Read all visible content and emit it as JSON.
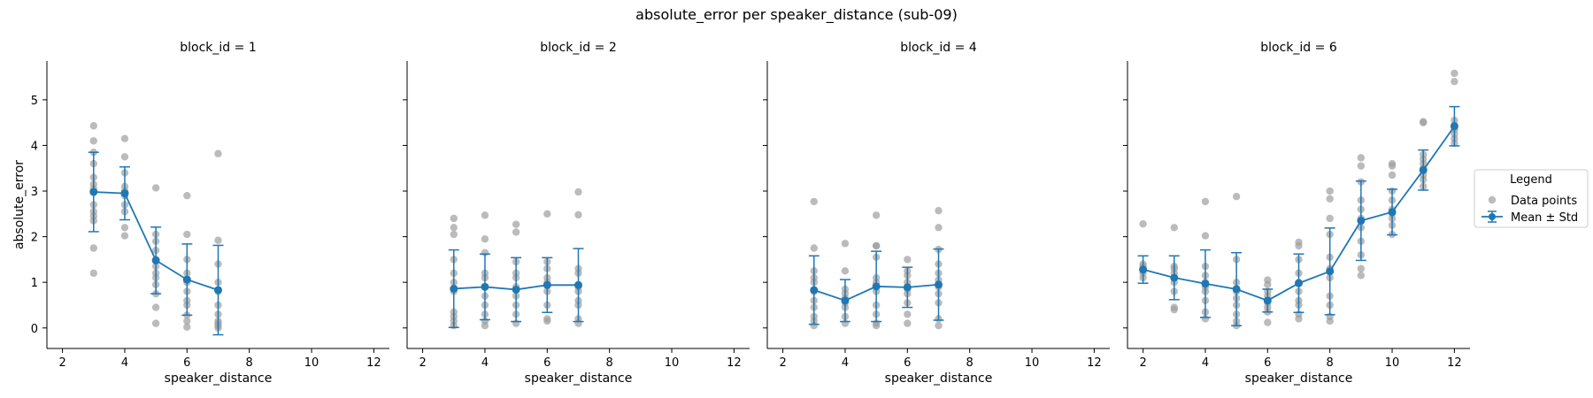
{
  "chart_data": {
    "type": "scatter",
    "title": "absolute_error per speaker_distance (sub-09)",
    "xlabel": "speaker_distance",
    "ylabel": "absolute_error",
    "xlim": [
      1.5,
      12.5
    ],
    "ylim": [
      -0.45,
      5.85
    ],
    "xticks": [
      2,
      4,
      6,
      8,
      10,
      12
    ],
    "yticks": [
      0,
      1,
      2,
      3,
      4,
      5
    ],
    "colors": {
      "points": "#9e9e9e",
      "mean": "#1f77b4",
      "axis": "#000000"
    },
    "legend": {
      "title": "Legend",
      "placement": "center-right",
      "entries": [
        "Data points",
        "Mean ± Std"
      ]
    },
    "panels": [
      {
        "title": "block_id = 1",
        "mean": [
          {
            "x": 3,
            "y": 2.98,
            "std": 0.87
          },
          {
            "x": 4,
            "y": 2.95,
            "std": 0.58
          },
          {
            "x": 5,
            "y": 1.48,
            "std": 0.73
          },
          {
            "x": 6,
            "y": 1.06,
            "std": 0.78
          },
          {
            "x": 7,
            "y": 0.83,
            "std": 0.98
          }
        ],
        "points": [
          {
            "x": 3,
            "ys": [
              1.2,
              1.75,
              2.35,
              2.45,
              2.55,
              2.7,
              3.05,
              3.15,
              3.3,
              3.6,
              3.85,
              4.1,
              4.43
            ]
          },
          {
            "x": 4,
            "ys": [
              2.02,
              2.2,
              2.55,
              2.7,
              2.9,
              3.0,
              3.1,
              3.4,
              3.75,
              4.15
            ]
          },
          {
            "x": 5,
            "ys": [
              0.1,
              0.45,
              0.75,
              0.95,
              1.1,
              1.2,
              1.35,
              1.5,
              1.7,
              1.9,
              2.05,
              3.07
            ]
          },
          {
            "x": 6,
            "ys": [
              0.02,
              0.15,
              0.28,
              0.5,
              0.6,
              0.8,
              1.0,
              1.2,
              1.5,
              2.05,
              2.9
            ]
          },
          {
            "x": 7,
            "ys": [
              0.0,
              0.05,
              0.1,
              0.15,
              0.3,
              0.5,
              0.8,
              1.0,
              1.4,
              1.92,
              3.82
            ]
          }
        ]
      },
      {
        "title": "block_id = 2",
        "mean": [
          {
            "x": 3,
            "y": 0.86,
            "std": 0.85
          },
          {
            "x": 4,
            "y": 0.9,
            "std": 0.72
          },
          {
            "x": 5,
            "y": 0.84,
            "std": 0.7
          },
          {
            "x": 6,
            "y": 0.94,
            "std": 0.6
          },
          {
            "x": 7,
            "y": 0.94,
            "std": 0.8
          }
        ],
        "points": [
          {
            "x": 3,
            "ys": [
              0.05,
              0.15,
              0.25,
              0.35,
              0.8,
              1.0,
              1.2,
              1.5,
              2.05,
              2.2,
              2.4
            ]
          },
          {
            "x": 4,
            "ys": [
              0.05,
              0.15,
              0.3,
              0.5,
              0.7,
              0.9,
              1.1,
              1.2,
              1.65,
              1.95,
              2.47
            ]
          },
          {
            "x": 5,
            "ys": [
              0.1,
              0.3,
              0.5,
              0.7,
              0.9,
              1.1,
              1.2,
              1.45,
              2.1,
              2.27
            ]
          },
          {
            "x": 6,
            "ys": [
              0.15,
              0.2,
              0.5,
              0.8,
              1.0,
              1.1,
              1.3,
              1.45,
              2.5
            ]
          },
          {
            "x": 7,
            "ys": [
              0.1,
              0.2,
              0.5,
              0.6,
              0.8,
              0.9,
              1.2,
              1.3,
              2.48,
              2.98
            ]
          }
        ]
      },
      {
        "title": "block_id = 4",
        "mean": [
          {
            "x": 3,
            "y": 0.83,
            "std": 0.75
          },
          {
            "x": 4,
            "y": 0.6,
            "std": 0.46
          },
          {
            "x": 5,
            "y": 0.91,
            "std": 0.77
          },
          {
            "x": 6,
            "y": 0.89,
            "std": 0.44
          },
          {
            "x": 7,
            "y": 0.95,
            "std": 0.78
          }
        ],
        "points": [
          {
            "x": 3,
            "ys": [
              0.05,
              0.15,
              0.25,
              0.45,
              0.6,
              0.8,
              1.0,
              1.1,
              1.25,
              1.75,
              2.77
            ]
          },
          {
            "x": 4,
            "ys": [
              0.1,
              0.25,
              0.45,
              0.55,
              0.65,
              0.75,
              0.85,
              1.25,
              1.85
            ]
          },
          {
            "x": 5,
            "ys": [
              0.05,
              0.1,
              0.3,
              0.5,
              0.8,
              1.0,
              1.1,
              1.55,
              1.8,
              1.8,
              2.47
            ]
          },
          {
            "x": 6,
            "ys": [
              0.1,
              0.3,
              0.55,
              0.75,
              0.85,
              1.0,
              1.15,
              1.25,
              1.5
            ]
          },
          {
            "x": 7,
            "ys": [
              0.05,
              0.2,
              0.55,
              0.75,
              0.9,
              1.05,
              1.2,
              1.4,
              1.72,
              2.2,
              2.57
            ]
          }
        ]
      },
      {
        "title": "block_id = 6",
        "mean": [
          {
            "x": 2,
            "y": 1.28,
            "std": 0.3
          },
          {
            "x": 3,
            "y": 1.1,
            "std": 0.48
          },
          {
            "x": 4,
            "y": 0.97,
            "std": 0.74
          },
          {
            "x": 5,
            "y": 0.85,
            "std": 0.8
          },
          {
            "x": 6,
            "y": 0.6,
            "std": 0.25
          },
          {
            "x": 7,
            "y": 0.98,
            "std": 0.64
          },
          {
            "x": 8,
            "y": 1.24,
            "std": 0.95
          },
          {
            "x": 9,
            "y": 2.35,
            "std": 0.87
          },
          {
            "x": 10,
            "y": 2.54,
            "std": 0.5
          },
          {
            "x": 11,
            "y": 3.46,
            "std": 0.44
          },
          {
            "x": 12,
            "y": 4.42,
            "std": 0.43
          }
        ],
        "points": [
          {
            "x": 2,
            "ys": [
              1.1,
              1.2,
              1.25,
              1.3,
              1.35,
              1.4,
              2.28
            ]
          },
          {
            "x": 3,
            "ys": [
              0.4,
              0.45,
              0.8,
              1.0,
              1.1,
              1.2,
              1.3,
              1.35,
              2.2
            ]
          },
          {
            "x": 4,
            "ys": [
              0.2,
              0.35,
              0.6,
              0.8,
              0.9,
              1.0,
              1.15,
              1.35,
              2.02,
              2.77
            ]
          },
          {
            "x": 5,
            "ys": [
              0.05,
              0.15,
              0.3,
              0.5,
              0.65,
              0.8,
              1.0,
              1.5,
              2.88
            ]
          },
          {
            "x": 6,
            "ys": [
              0.12,
              0.35,
              0.45,
              0.55,
              0.6,
              0.7,
              0.8,
              0.95,
              1.05
            ]
          },
          {
            "x": 7,
            "ys": [
              0.2,
              0.3,
              0.5,
              0.6,
              0.8,
              1.0,
              1.2,
              1.5,
              1.8,
              1.88
            ]
          },
          {
            "x": 8,
            "ys": [
              0.15,
              0.25,
              0.5,
              0.7,
              1.1,
              1.3,
              1.55,
              2.05,
              2.4,
              2.83,
              3.0
            ]
          },
          {
            "x": 9,
            "ys": [
              1.15,
              1.3,
              1.6,
              1.9,
              2.2,
              2.4,
              2.6,
              2.8,
              3.2,
              3.55,
              3.73
            ]
          },
          {
            "x": 10,
            "ys": [
              2.05,
              2.25,
              2.4,
              2.5,
              2.6,
              2.8,
              3.0,
              3.35,
              3.55,
              3.6
            ]
          },
          {
            "x": 11,
            "ys": [
              3.1,
              3.25,
              3.35,
              3.5,
              3.6,
              3.7,
              3.8,
              4.5,
              4.52
            ]
          },
          {
            "x": 12,
            "ys": [
              4.05,
              4.15,
              4.25,
              4.35,
              4.45,
              4.55,
              5.4,
              5.58
            ]
          }
        ]
      }
    ]
  }
}
